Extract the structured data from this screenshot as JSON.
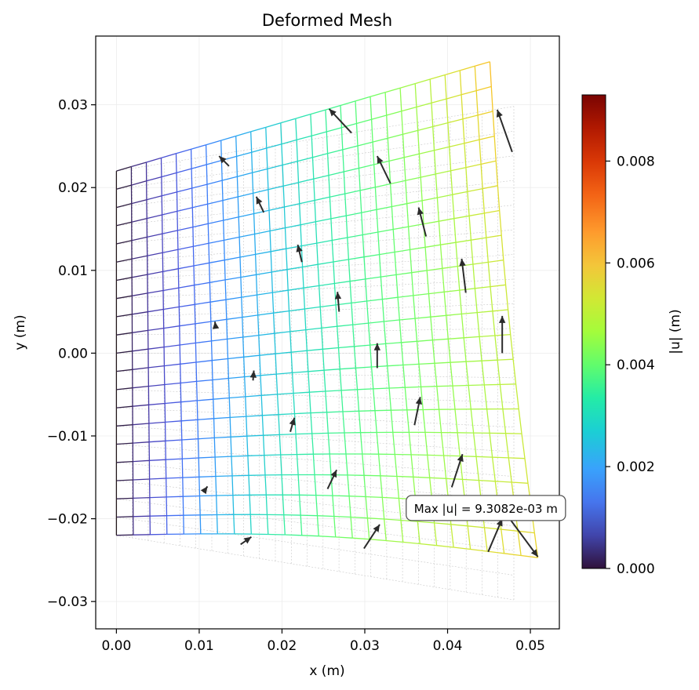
{
  "chart_data": {
    "type": "mesh",
    "title": "Deformed Mesh",
    "xlabel": "x (m)",
    "ylabel": "y (m)",
    "xlim": [
      -0.0025,
      0.0535
    ],
    "ylim": [
      -0.0333,
      0.0383
    ],
    "x_ticks": [
      0.0,
      0.01,
      0.02,
      0.03,
      0.04,
      0.05
    ],
    "x_tick_labels": [
      "0.00",
      "0.01",
      "0.02",
      "0.03",
      "0.04",
      "0.05"
    ],
    "y_ticks": [
      -0.03,
      -0.02,
      -0.01,
      0.0,
      0.01,
      0.02,
      0.03
    ],
    "y_tick_labels": [
      "−0.03",
      "−0.02",
      "−0.01",
      "0.00",
      "0.01",
      "0.02",
      "0.03"
    ],
    "grid": true,
    "colormap": "turbo",
    "undeformed_mesh": {
      "nx": 25,
      "ny": 20,
      "corners": {
        "bottom_left": [
          0.0,
          -0.022
        ],
        "bottom_right": [
          0.048,
          -0.0298
        ],
        "top_right": [
          0.048,
          0.0298
        ],
        "top_left": [
          0.0,
          0.022
        ]
      },
      "color": "#c8c8c8"
    },
    "deformed_mesh": {
      "nx": 25,
      "ny": 20,
      "corners": {
        "bottom_left": [
          0.0,
          -0.022
        ],
        "bottom_right": [
          0.0509,
          -0.0247
        ],
        "top_right": [
          0.0451,
          0.0352
        ],
        "top_left": [
          0.0,
          0.022
        ]
      },
      "bottom_bulge": 0.0012,
      "right_bulge": 0.0007
    },
    "displacement_arrows": [
      {
        "x": 0.0478,
        "y": 0.0243,
        "dx": -0.0018,
        "dy": 0.0051
      },
      {
        "x": 0.0284,
        "y": 0.0266,
        "dx": -0.0027,
        "dy": 0.0029
      },
      {
        "x": 0.0331,
        "y": 0.0205,
        "dx": -0.0016,
        "dy": 0.0033
      },
      {
        "x": 0.0136,
        "y": 0.0226,
        "dx": -0.0012,
        "dy": 0.0012
      },
      {
        "x": 0.0374,
        "y": 0.0141,
        "dx": -0.0009,
        "dy": 0.0035
      },
      {
        "x": 0.0178,
        "y": 0.017,
        "dx": -0.0009,
        "dy": 0.0019
      },
      {
        "x": 0.0422,
        "y": 0.0073,
        "dx": -0.0005,
        "dy": 0.0041
      },
      {
        "x": 0.0224,
        "y": 0.011,
        "dx": -0.0005,
        "dy": 0.0021
      },
      {
        "x": 0.0269,
        "y": 0.005,
        "dx": -0.0002,
        "dy": 0.0024
      },
      {
        "x": 0.0466,
        "y": 0.0,
        "dx": 0.0,
        "dy": 0.0045
      },
      {
        "x": 0.012,
        "y": 0.003,
        "dx": -0.0001,
        "dy": 0.0008
      },
      {
        "x": 0.0315,
        "y": -0.0018,
        "dx": 0.0,
        "dy": 0.003
      },
      {
        "x": 0.0165,
        "y": -0.0033,
        "dx": 0.0001,
        "dy": 0.0012
      },
      {
        "x": 0.036,
        "y": -0.0087,
        "dx": 0.0007,
        "dy": 0.0034
      },
      {
        "x": 0.021,
        "y": -0.0095,
        "dx": 0.0005,
        "dy": 0.0017
      },
      {
        "x": 0.0405,
        "y": -0.0162,
        "dx": 0.0013,
        "dy": 0.004
      },
      {
        "x": 0.0105,
        "y": -0.0168,
        "dx": 0.0005,
        "dy": 0.0007
      },
      {
        "x": 0.0255,
        "y": -0.0164,
        "dx": 0.0011,
        "dy": 0.0023
      },
      {
        "x": 0.0449,
        "y": -0.024,
        "dx": 0.0017,
        "dy": 0.004
      },
      {
        "x": 0.015,
        "y": -0.0231,
        "dx": 0.0013,
        "dy": 0.0009
      },
      {
        "x": 0.0299,
        "y": -0.0236,
        "dx": 0.0019,
        "dy": 0.0029
      },
      {
        "x": 0.0475,
        "y": -0.02,
        "dx": 0.0034,
        "dy": -0.0046
      }
    ],
    "annotation": {
      "text": "Max |u| = 9.3082e-03 m",
      "x": 0.035,
      "y": -0.0187
    },
    "colorbar": {
      "label": "|u| (m)",
      "range": [
        0.0,
        0.0093
      ],
      "ticks": [
        0.0,
        0.002,
        0.004,
        0.006,
        0.008
      ],
      "tick_labels": [
        "0.000",
        "0.002",
        "0.004",
        "0.006",
        "0.008"
      ]
    }
  }
}
